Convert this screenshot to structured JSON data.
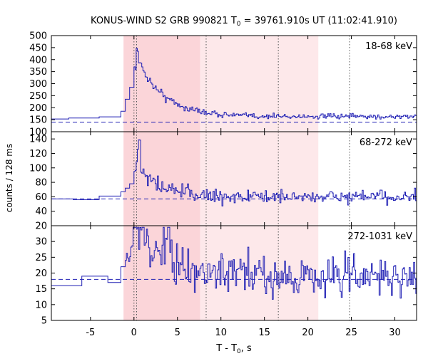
{
  "title_prefix": "KONUS-WIND S2 GRB 990821 T",
  "title_sub": "0",
  "title_suffix": " = 39761.910s UT (11:02:41.910)",
  "ylabel": "counts / 128 ms",
  "xlabel_prefix": "T - T",
  "xlabel_sub": "0",
  "xlabel_suffix": ", s",
  "colors": {
    "line": "#1f1fb4",
    "shade_dark": "#fbd5d9",
    "shade_light": "#fde8ea",
    "background_level": "#1f1fb4",
    "marker_line": "#555555"
  },
  "chart_data": {
    "type": "line",
    "x_range": [
      -9.5,
      32.5
    ],
    "x_ticks": [
      -5,
      0,
      5,
      10,
      15,
      20,
      25,
      30
    ],
    "shaded_intervals": [
      {
        "start": -1.2,
        "end": 7.6,
        "tone": "dark"
      },
      {
        "start": 7.6,
        "end": 21.2,
        "tone": "light"
      }
    ],
    "vertical_markers": [
      0,
      0.3,
      8.3,
      16.6,
      24.8
    ],
    "panels": [
      {
        "band": "18-68 keV",
        "ylim": [
          100,
          500
        ],
        "yticks": [
          100,
          150,
          200,
          250,
          300,
          350,
          400,
          450,
          500
        ],
        "background": 140,
        "pre": [
          [
            -9.5,
            153
          ],
          [
            -7.5,
            157
          ],
          [
            -4,
            162
          ],
          [
            -1.5,
            185
          ],
          [
            -1,
            235
          ],
          [
            -0.5,
            285
          ],
          [
            0,
            370
          ]
        ],
        "peak": {
          "t": 0.35,
          "value": 440
        },
        "decay": {
          "amplitude": 240,
          "tau": 3.0,
          "noise": 12
        },
        "tail": {
          "level": 163,
          "noise": 8
        }
      },
      {
        "band": "68-272 keV",
        "ylim": [
          20,
          150
        ],
        "yticks": [
          20,
          40,
          60,
          80,
          100,
          120,
          140
        ],
        "background": 57,
        "pre": [
          [
            -9.5,
            57
          ],
          [
            -7,
            56
          ],
          [
            -4,
            61
          ],
          [
            -1.5,
            67
          ],
          [
            -1,
            72
          ],
          [
            -0.5,
            78
          ],
          [
            0,
            95
          ]
        ],
        "peak": {
          "t": 0.6,
          "value": 138
        },
        "decay": {
          "amplitude": 40,
          "tau": 2.5,
          "noise": 8
        },
        "tail": {
          "level": 60,
          "noise": 6
        }
      },
      {
        "band": "272-1031 keV",
        "ylim": [
          5,
          35
        ],
        "yticks": [
          5,
          10,
          15,
          20,
          25,
          30
        ],
        "background": 18,
        "pre": [
          [
            -9.5,
            16
          ],
          [
            -6,
            19
          ],
          [
            -3,
            17
          ],
          [
            -1.5,
            22
          ],
          [
            -1,
            24
          ]
        ],
        "peak": {
          "t": 4.5,
          "value": 28
        },
        "decay": {
          "amplitude": 2,
          "tau": 5,
          "noise": 5
        },
        "tail": {
          "level": 19,
          "noise": 4.5
        }
      }
    ]
  }
}
